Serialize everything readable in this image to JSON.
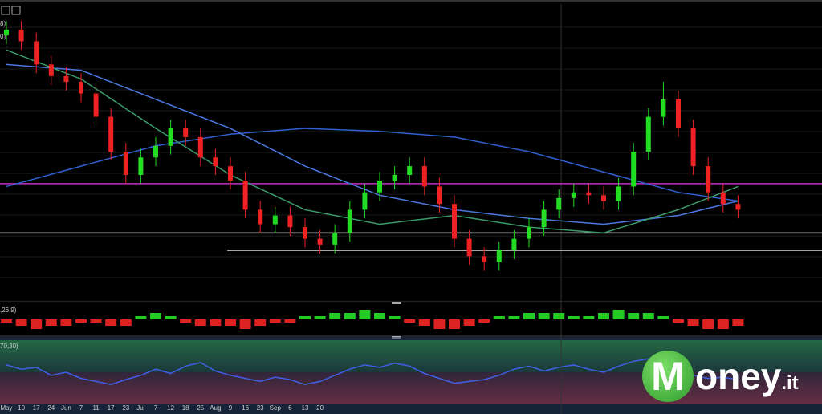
{
  "chart_data": [
    {
      "type": "candlestick",
      "ylim": [
        0,
        100
      ],
      "legend_fragments": [
        "8)",
        "0)"
      ],
      "categories": [
        "May",
        "10",
        "17",
        "24",
        "Jun",
        "7",
        "11",
        "17",
        "23",
        "Jul",
        "7",
        "12",
        "18",
        "25",
        "Aug",
        "9",
        "16",
        "23",
        "Sep",
        "6",
        "13",
        "20",
        null,
        null,
        null,
        null,
        null,
        null,
        null,
        null,
        null,
        null,
        null,
        null,
        null,
        null,
        null,
        null,
        null,
        null,
        null,
        null,
        null,
        null,
        null,
        null,
        null,
        null,
        null,
        null
      ],
      "open": [
        90,
        92,
        88,
        80,
        76,
        74,
        70,
        62,
        50,
        42,
        48,
        52,
        58,
        55,
        48,
        45,
        40,
        30,
        25,
        28,
        24,
        20,
        18,
        22,
        30,
        36,
        40,
        42,
        45,
        38,
        32,
        20,
        14,
        12,
        16,
        20,
        24,
        30,
        34,
        36,
        35,
        33,
        38,
        50,
        62,
        68,
        58,
        45,
        36,
        32
      ],
      "high": [
        95,
        95,
        91,
        83,
        79,
        77,
        73,
        65,
        53,
        51,
        55,
        61,
        61,
        58,
        51,
        48,
        43,
        33,
        31,
        31,
        27,
        23,
        25,
        33,
        39,
        43,
        45,
        48,
        48,
        41,
        35,
        23,
        17,
        19,
        23,
        27,
        33,
        37,
        39,
        39,
        38,
        41,
        53,
        65,
        74,
        71,
        61,
        48,
        39,
        35
      ],
      "low": [
        87,
        85,
        77,
        73,
        71,
        67,
        59,
        47,
        39,
        39,
        45,
        49,
        52,
        45,
        42,
        37,
        27,
        22,
        22,
        21,
        17,
        15,
        15,
        19,
        27,
        33,
        37,
        39,
        35,
        29,
        17,
        11,
        9,
        9,
        13,
        17,
        21,
        27,
        31,
        32,
        30,
        30,
        35,
        47,
        59,
        55,
        42,
        33,
        29,
        27
      ],
      "close": [
        92,
        88,
        80,
        76,
        74,
        70,
        62,
        50,
        42,
        48,
        52,
        58,
        55,
        48,
        45,
        40,
        30,
        25,
        28,
        24,
        20,
        18,
        22,
        30,
        36,
        40,
        42,
        45,
        38,
        32,
        20,
        14,
        12,
        16,
        20,
        24,
        30,
        34,
        36,
        35,
        33,
        38,
        50,
        62,
        68,
        58,
        45,
        36,
        32,
        30
      ],
      "up_color": "#22dd22",
      "down_color": "#ee2222",
      "series": [
        {
          "color": "#3060d0",
          "x": [
            0,
            5,
            10,
            15,
            20,
            25,
            30,
            35,
            40,
            45,
            49
          ],
          "values": [
            38,
            45,
            52,
            56,
            58,
            57,
            55,
            50,
            43,
            36,
            33
          ]
        },
        {
          "color": "#4a78e0",
          "x": [
            0,
            5,
            10,
            15,
            20,
            25,
            30,
            35,
            40,
            45,
            49
          ],
          "values": [
            80,
            78,
            68,
            58,
            45,
            35,
            30,
            27,
            25,
            28,
            33
          ]
        },
        {
          "color": "#3a9a6a",
          "x": [
            0,
            5,
            10,
            15,
            20,
            25,
            30,
            35,
            40,
            45,
            49
          ],
          "values": [
            85,
            75,
            58,
            42,
            30,
            25,
            28,
            24,
            22,
            30,
            38
          ]
        }
      ],
      "hlines": [
        {
          "value": 39,
          "color": "#c030c0"
        },
        {
          "value": 22,
          "color": "#dddddd"
        },
        {
          "value": 16,
          "color": "#bbbbbb"
        }
      ]
    },
    {
      "type": "histogram",
      "title": ",26,9)",
      "ylim": [
        -4,
        4
      ],
      "pos_color": "#22cc22",
      "neg_color": "#dd2222",
      "values": [
        -1,
        -2,
        -3,
        -2,
        -2,
        -1,
        -1,
        -2,
        -2,
        1,
        2,
        1,
        -1,
        -2,
        -2,
        -2,
        -3,
        -2,
        -1,
        -1,
        1,
        1,
        2,
        2,
        3,
        2,
        1,
        -1,
        -2,
        -3,
        -3,
        -2,
        -1,
        1,
        1,
        2,
        2,
        2,
        1,
        1,
        2,
        3,
        2,
        2,
        1,
        -1,
        -2,
        -3,
        -3,
        -2
      ]
    },
    {
      "type": "line",
      "title": "70,30)",
      "ylim": [
        0,
        100
      ],
      "color": "#4060e8",
      "values": [
        62,
        55,
        58,
        45,
        50,
        40,
        35,
        30,
        38,
        45,
        55,
        48,
        60,
        66,
        52,
        45,
        40,
        35,
        42,
        38,
        30,
        35,
        45,
        55,
        62,
        58,
        65,
        60,
        48,
        40,
        32,
        35,
        38,
        45,
        55,
        60,
        52,
        58,
        62,
        55,
        50,
        60,
        68,
        72,
        70,
        50,
        45,
        40,
        42,
        38
      ]
    }
  ],
  "logo": {
    "initial": "M",
    "name": "oney",
    "suffix": ".it"
  }
}
